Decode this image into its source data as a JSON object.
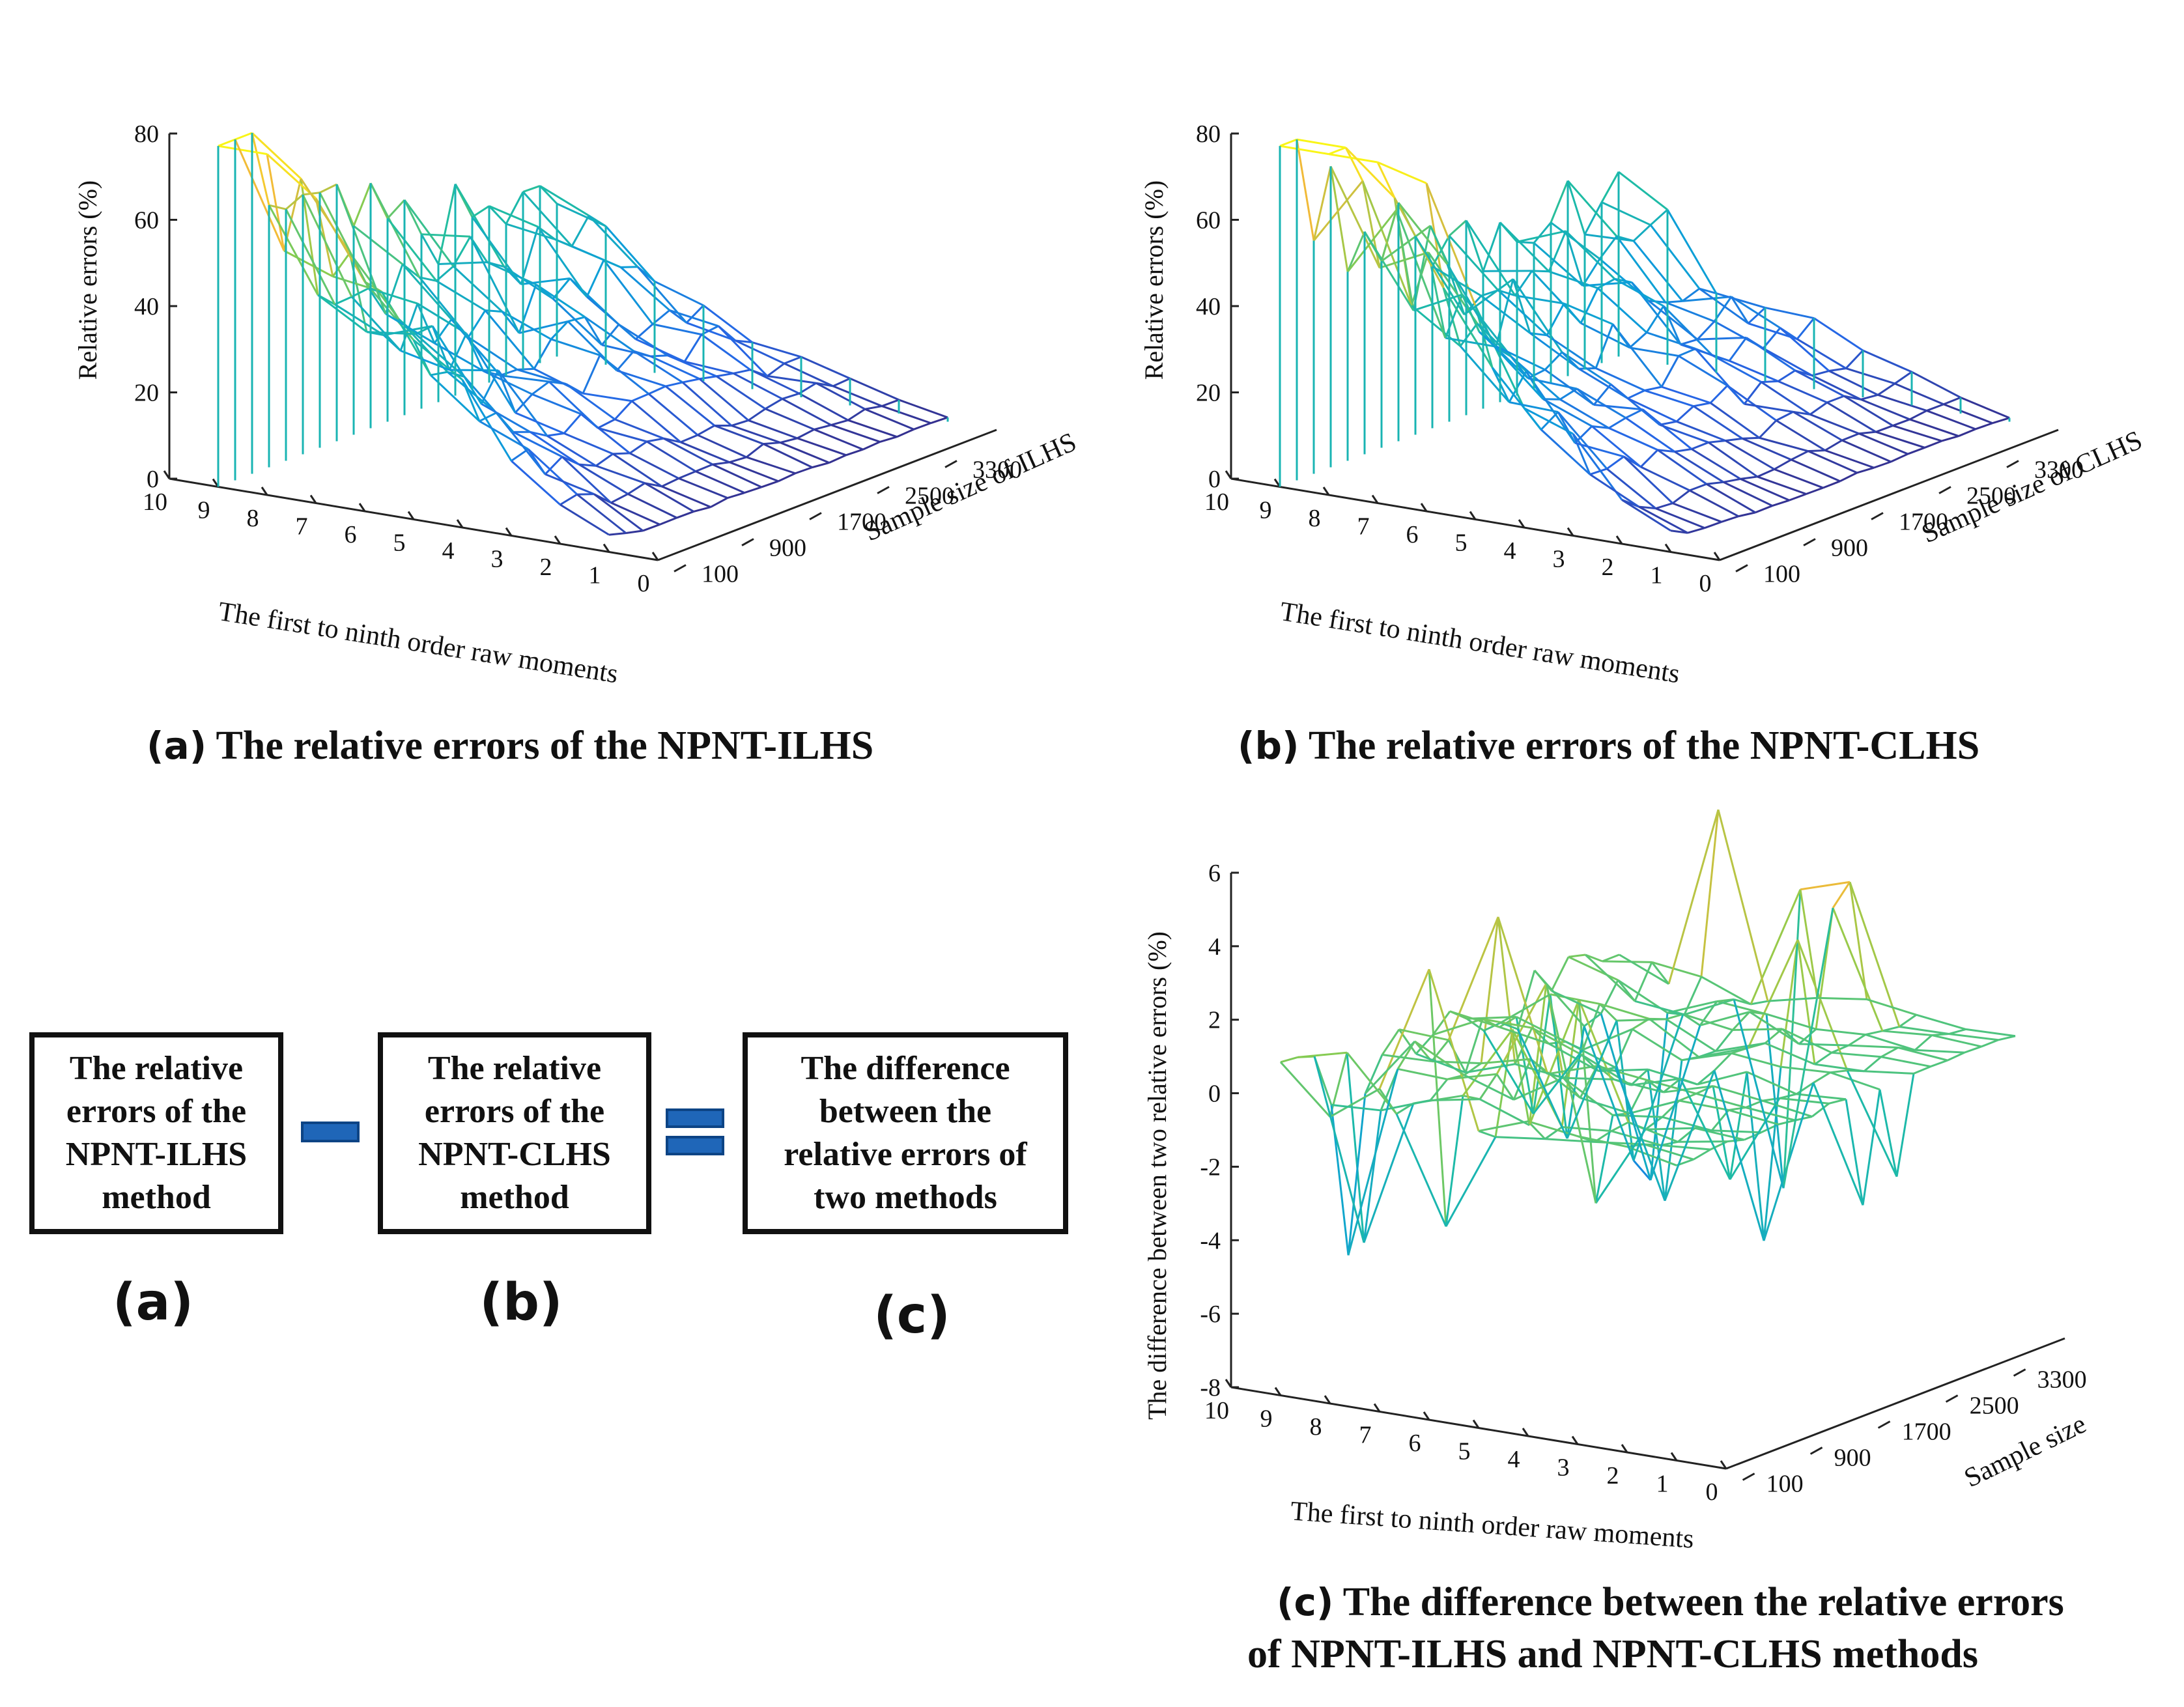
{
  "chart_data": [
    {
      "id": "a",
      "type": "surface-3d",
      "zlabel": "Relative errors (%)",
      "xlabel": "The first to ninth order raw moments",
      "ylabel": "Sample size of ILHS",
      "z_ticks": [
        "0",
        "20",
        "40",
        "60",
        "80"
      ],
      "x_ticks": [
        "10",
        "9",
        "8",
        "7",
        "6",
        "5",
        "4",
        "3",
        "2",
        "1",
        "0"
      ],
      "y_ticks": [
        "100",
        "900",
        "1700",
        "2500",
        "3300"
      ],
      "zlim": [
        0,
        80
      ],
      "x_range": [
        0,
        10
      ],
      "y_range": [
        100,
        4100
      ],
      "moments": [
        1,
        2,
        3,
        4,
        5,
        6,
        7,
        8,
        9
      ],
      "sample_sizes": [
        100,
        300,
        500,
        700,
        900,
        1100,
        1300,
        1500,
        1700,
        1900,
        2100,
        2300,
        2500,
        2700,
        2900,
        3100,
        3300,
        3500,
        3700,
        3900,
        4100
      ],
      "colormap": "parula",
      "caption_prefix": "(a)",
      "caption": "The relative errors of the NPNT-ILHS"
    },
    {
      "id": "b",
      "type": "surface-3d",
      "zlabel": "Relative errors (%)",
      "xlabel": "The first to ninth order raw moments",
      "ylabel": "Sample size of CLHS",
      "z_ticks": [
        "0",
        "20",
        "40",
        "60",
        "80"
      ],
      "x_ticks": [
        "10",
        "9",
        "8",
        "7",
        "6",
        "5",
        "4",
        "3",
        "2",
        "1",
        "0"
      ],
      "y_ticks": [
        "100",
        "900",
        "1700",
        "2500",
        "3300"
      ],
      "zlim": [
        0,
        80
      ],
      "x_range": [
        0,
        10
      ],
      "y_range": [
        100,
        4100
      ],
      "moments": [
        1,
        2,
        3,
        4,
        5,
        6,
        7,
        8,
        9
      ],
      "sample_sizes": [
        100,
        300,
        500,
        700,
        900,
        1100,
        1300,
        1500,
        1700,
        1900,
        2100,
        2300,
        2500,
        2700,
        2900,
        3100,
        3300,
        3500,
        3700,
        3900,
        4100
      ],
      "colormap": "parula",
      "caption_prefix": "(b)",
      "caption": "The relative errors of the NPNT-CLHS"
    },
    {
      "id": "c",
      "type": "surface-3d",
      "zlabel": "The difference between two relative errors (%)",
      "xlabel": "The first to ninth order raw moments",
      "ylabel": "Sample size",
      "z_ticks": [
        "-8",
        "-6",
        "-4",
        "-2",
        "0",
        "2",
        "4",
        "6"
      ],
      "x_ticks": [
        "10",
        "9",
        "8",
        "7",
        "6",
        "5",
        "4",
        "3",
        "2",
        "1",
        "0"
      ],
      "y_ticks": [
        "100",
        "900",
        "1700",
        "2500",
        "3300"
      ],
      "zlim": [
        -8,
        6
      ],
      "x_range": [
        0,
        10
      ],
      "y_range": [
        100,
        4100
      ],
      "moments": [
        1,
        2,
        3,
        4,
        5,
        6,
        7,
        8,
        9
      ],
      "sample_sizes": [
        100,
        300,
        500,
        700,
        900,
        1100,
        1300,
        1500,
        1700,
        1900,
        2100,
        2300,
        2500,
        2700,
        2900,
        3100,
        3300,
        3500,
        3700,
        3900,
        4100
      ],
      "colormap": "parula",
      "caption_prefix": "(c)",
      "caption_line1": "The difference between the relative errors",
      "caption_line2": "of NPNT-ILHS and NPNT-CLHS methods"
    }
  ],
  "equation": {
    "box_a": [
      "The relative",
      "errors of the",
      "NPNT-ILHS",
      "method"
    ],
    "box_b": [
      "The relative",
      "errors of the",
      "NPNT-CLHS",
      "method"
    ],
    "box_c": [
      "The difference",
      "between the",
      "relative errors of",
      "two methods"
    ],
    "label_a": "(a)",
    "label_b": "(b)",
    "label_c": "(c)",
    "operator_color": "#1f66b8"
  },
  "colors": {
    "text": "#111111",
    "axis": "#222222"
  }
}
